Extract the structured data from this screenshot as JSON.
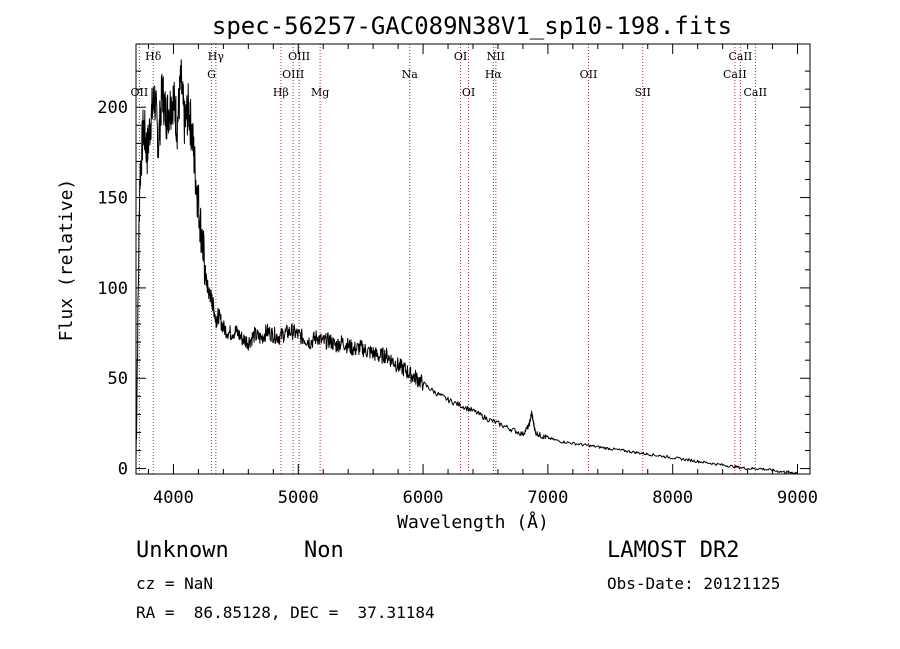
{
  "chart_data": {
    "type": "line",
    "title": "spec-56257-GAC089N38V1_sp10-198.fits",
    "xlabel": "Wavelength (Å)",
    "ylabel": "Flux (relative)",
    "xlim": [
      3700,
      9100
    ],
    "ylim": [
      -3,
      235
    ],
    "xticks": [
      4000,
      5000,
      6000,
      7000,
      8000,
      9000
    ],
    "yticks": [
      0,
      50,
      100,
      150,
      200
    ],
    "grid": false,
    "series": [
      {
        "x": [
          3700,
          3730,
          3760,
          3790,
          3820,
          3850,
          3880,
          3910,
          3940,
          3970,
          4000,
          4030,
          4060,
          4090,
          4120,
          4150,
          4180,
          4210,
          4240,
          4260,
          4280,
          4300,
          4320,
          4340,
          4360,
          4400,
          4450,
          4500,
          4550,
          4600,
          4650,
          4700,
          4750,
          4800,
          4850,
          4900,
          4950,
          5000,
          5050,
          5100,
          5150,
          5200,
          5250,
          5300,
          5350,
          5400,
          5450,
          5500,
          5550,
          5600,
          5650,
          5700,
          5750,
          5800,
          5850,
          5900,
          5950,
          6000,
          6100,
          6200,
          6300,
          6400,
          6500,
          6600,
          6700,
          6800,
          6850,
          6870,
          6880,
          6900,
          6950,
          7000,
          7100,
          7200,
          7300,
          7400,
          7500,
          7600,
          7700,
          7800,
          7900,
          8000,
          8100,
          8200,
          8300,
          8400,
          8500,
          8600,
          8700,
          8800,
          8900,
          8950,
          9000
        ],
        "y": [
          5,
          160,
          190,
          175,
          195,
          205,
          180,
          210,
          195,
          200,
          205,
          190,
          215,
          190,
          200,
          185,
          160,
          140,
          120,
          105,
          98,
          95,
          90,
          82,
          85,
          78,
          75,
          76,
          72,
          70,
          74,
          72,
          76,
          74,
          73,
          75,
          76,
          74,
          72,
          70,
          73,
          70,
          71,
          68,
          70,
          68,
          66,
          67,
          65,
          64,
          62,
          63,
          60,
          57,
          55,
          52,
          50,
          47,
          42,
          38,
          35,
          32,
          28,
          25,
          22,
          19,
          24,
          31,
          27,
          20,
          18,
          17,
          15,
          14,
          13,
          12,
          11,
          10,
          9,
          8,
          7,
          6,
          5,
          4,
          3,
          2,
          1,
          0,
          0,
          -1,
          -2,
          -2,
          -3
        ]
      }
    ],
    "annotations": [
      {
        "label": "Hδ",
        "x": 3838,
        "row": 1
      },
      {
        "label": "OII",
        "x": 3727,
        "row": 3
      },
      {
        "label": "Hγ",
        "x": 4340,
        "row": 1
      },
      {
        "label": "G",
        "x": 4305,
        "row": 2
      },
      {
        "label": "Hβ",
        "x": 4861,
        "row": 3
      },
      {
        "label": "OIII",
        "x": 5007,
        "row": 1
      },
      {
        "label": "OIII",
        "x": 4959,
        "row": 2
      },
      {
        "label": "Mg",
        "x": 5175,
        "row": 3
      },
      {
        "label": "Na",
        "x": 5893,
        "row": 2
      },
      {
        "label": "OI",
        "x": 6300,
        "row": 1
      },
      {
        "label": "OI",
        "x": 6364,
        "row": 3
      },
      {
        "label": "NII",
        "x": 6583,
        "row": 1
      },
      {
        "label": "Hα",
        "x": 6563,
        "row": 2
      },
      {
        "label": "OII",
        "x": 7325,
        "row": 2
      },
      {
        "label": "SII",
        "x": 7760,
        "row": 3
      },
      {
        "label": "CaII",
        "x": 8542,
        "row": 1
      },
      {
        "label": "CaII",
        "x": 8498,
        "row": 2
      },
      {
        "label": "CaII",
        "x": 8662,
        "row": 3
      }
    ]
  },
  "info": {
    "class": "Unknown",
    "subclass": "Non",
    "cz": "cz = NaN",
    "coords": "RA =  86.85128, DEC =  37.31184",
    "survey": "LAMOST DR2",
    "obs_date": "Obs-Date: 20121125"
  }
}
